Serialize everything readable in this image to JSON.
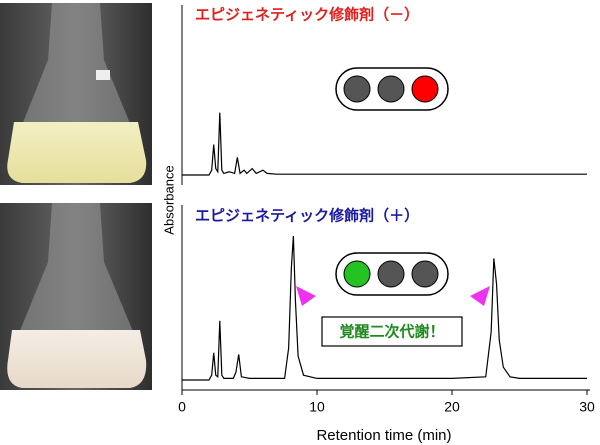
{
  "chart_data": [
    {
      "type": "line",
      "title": "エピジェネティック修飾剤（－）",
      "ylabel": "Absorbance",
      "color": "#000000",
      "x": [
        0,
        2.0,
        2.2,
        2.35,
        2.5,
        2.65,
        2.8,
        2.95,
        3.1,
        3.5,
        3.9,
        4.1,
        4.3,
        4.6,
        4.8,
        5.2,
        5.5,
        6.0,
        6.3,
        7,
        10,
        15,
        20,
        25,
        30
      ],
      "values": [
        0,
        0,
        3,
        19,
        4,
        2,
        39,
        3,
        1,
        2,
        1,
        11,
        1,
        3,
        1,
        4,
        1,
        3,
        1,
        0.5,
        0.5,
        0.5,
        0.5,
        0.5,
        0.5
      ],
      "xlim": [
        0,
        30
      ],
      "ylim": [
        0,
        100
      ]
    },
    {
      "type": "line",
      "title": "エピジェネティック修飾剤（＋）",
      "annotation": "覚醒二次代謝！",
      "xlabel": "Retention time (min)",
      "color": "#000000",
      "x": [
        0,
        2.0,
        2.2,
        2.35,
        2.5,
        2.65,
        2.8,
        2.95,
        3.1,
        3.8,
        4.0,
        4.2,
        4.4,
        5,
        7.6,
        7.9,
        8.1,
        8.25,
        8.4,
        8.6,
        9.0,
        10,
        20,
        22.5,
        22.9,
        23.1,
        23.3,
        23.5,
        23.8,
        24.3,
        25,
        30
      ],
      "values": [
        0,
        0,
        3,
        17,
        3,
        2,
        37,
        3,
        1,
        1,
        5,
        16,
        2,
        1,
        1,
        20,
        70,
        90,
        50,
        15,
        3,
        1,
        1,
        2,
        30,
        76,
        60,
        25,
        8,
        2,
        1,
        1
      ],
      "xlim": [
        0,
        30
      ],
      "ylim": [
        0,
        100
      ],
      "xticks": [
        0,
        10,
        20,
        30
      ]
    }
  ]
}
